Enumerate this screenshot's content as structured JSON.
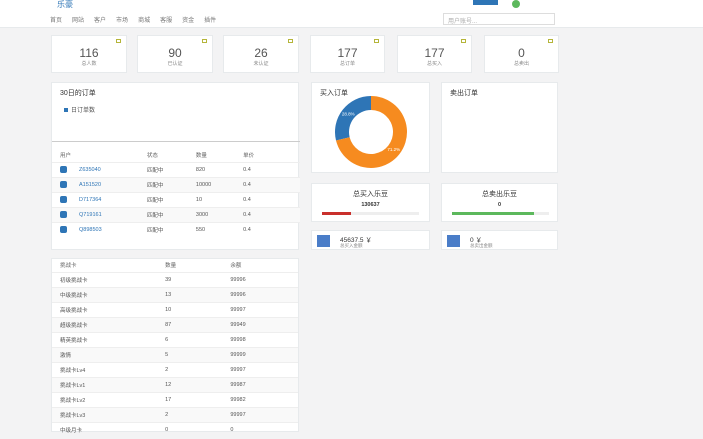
{
  "header": {
    "logo": "乐豪",
    "nav": [
      "首页",
      "网站",
      "客户",
      "市场",
      "商城",
      "客服",
      "资金",
      "插件"
    ],
    "search_placeholder": "用户账号..."
  },
  "stats": [
    {
      "value": 116,
      "label": "总人数"
    },
    {
      "value": 90,
      "label": "已认证"
    },
    {
      "value": 26,
      "label": "未认证"
    },
    {
      "value": 177,
      "label": "总订单"
    },
    {
      "value": 177,
      "label": "总买入"
    },
    {
      "value": 0,
      "label": "总卖出"
    }
  ],
  "orders": {
    "title": "30日的订单",
    "legend": "日订单数",
    "columns": [
      "用户",
      "状态",
      "数量",
      "单价"
    ],
    "rows": [
      [
        "Z635040",
        "匹配中",
        820,
        0.4
      ],
      [
        "A151520",
        "匹配中",
        10000,
        0.4
      ],
      [
        "D717364",
        "匹配中",
        10,
        0.4
      ],
      [
        "Q719161",
        "匹配中",
        3000,
        0.4
      ],
      [
        "Q898503",
        "匹配中",
        550,
        0.4
      ]
    ]
  },
  "chart_data": {
    "type": "pie",
    "title": "买入订单",
    "values": [
      28.8,
      71.2
    ],
    "value_labels": [
      "28.8%",
      "71.2%"
    ],
    "colors": [
      "#2e75b6",
      "#f68b1f"
    ]
  },
  "sell_panel": {
    "title": "卖出订单"
  },
  "totals": [
    {
      "title": "总买入乐豆",
      "value": 130637,
      "bar": 30,
      "color": "#c9302c"
    },
    {
      "title": "总卖出乐豆",
      "value": 0,
      "bar": 85,
      "color": "#5cb85c"
    }
  ],
  "money": [
    {
      "amount": 45637.5,
      "unit": "￥",
      "label": "总买入金额"
    },
    {
      "amount": 0,
      "unit": "￥",
      "label": "总卖出金额"
    }
  ],
  "cards": {
    "columns": [
      "挑战卡",
      "数量",
      "余额"
    ],
    "rows": [
      [
        "初级挑战卡",
        39,
        99996
      ],
      [
        "中级挑战卡",
        13,
        99996
      ],
      [
        "高级挑战卡",
        10,
        99997
      ],
      [
        "超级挑战卡",
        87,
        99949
      ],
      [
        "精英挑战卡",
        6,
        99998
      ],
      [
        "激情",
        5,
        99999
      ],
      [
        "挑战卡Lv4",
        2,
        99997
      ],
      [
        "挑战卡Lv1",
        12,
        99987
      ],
      [
        "挑战卡Lv2",
        17,
        99982
      ],
      [
        "挑战卡Lv3",
        2,
        99997
      ],
      [
        "中级月卡",
        0,
        0
      ]
    ]
  }
}
